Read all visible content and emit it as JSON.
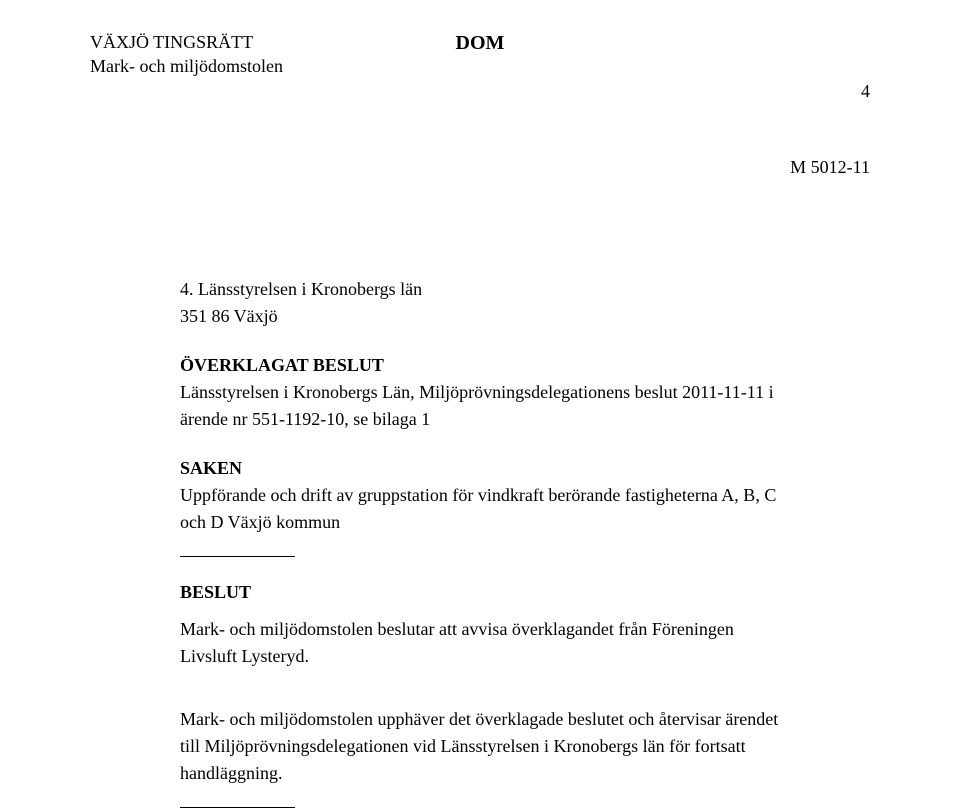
{
  "header": {
    "court": "VÄXJÖ TINGSRÄTT",
    "division": "Mark- och miljödomstolen",
    "doc_type": "DOM",
    "page_number": "4",
    "case_number": "M 5012-11"
  },
  "party": {
    "number_label": "4. Länsstyrelsen i Kronobergs län",
    "address": "351 86 Växjö"
  },
  "appealed": {
    "heading": "ÖVERKLAGAT BESLUT",
    "text": "Länsstyrelsen i Kronobergs Län, Miljöprövningsdelegationens beslut 2011-11-11 i ärende nr 551-1192-10, se bilaga 1"
  },
  "matter": {
    "heading": "SAKEN",
    "text": "Uppförande och drift av gruppstation för vindkraft berörande fastigheterna A, B, C och D Växjö kommun"
  },
  "decision": {
    "heading": "BESLUT",
    "p1": "Mark- och miljödomstolen beslutar att avvisa överklagandet från Föreningen Livsluft Lysteryd.",
    "p2": "Mark- och miljödomstolen upphäver det överklagade beslutet och återvisar ärendet till Miljöprövningsdelegationen vid Länsstyrelsen i Kronobergs län för fortsatt handläggning."
  }
}
